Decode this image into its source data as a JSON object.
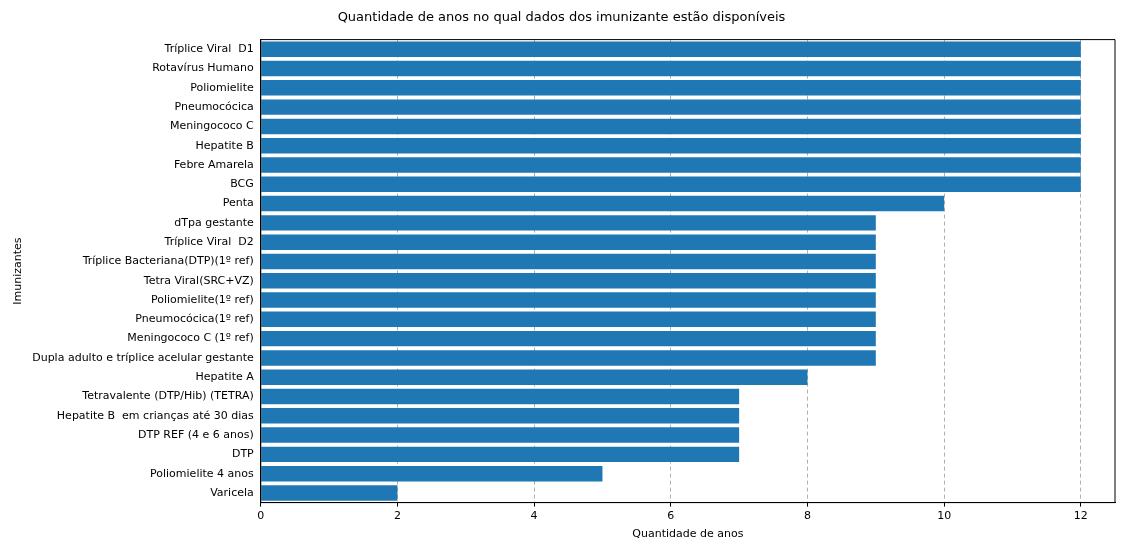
{
  "chart_data": {
    "type": "bar",
    "orientation": "horizontal",
    "title": "Quantidade de anos no qual dados dos imunizante estão disponíveis",
    "xlabel": "Quantidade de anos",
    "ylabel": "Imunizantes",
    "categories": [
      "Tríplice Viral  D1",
      "Rotavírus Humano",
      "Poliomielite",
      "Pneumocócica",
      "Meningococo C",
      "Hepatite B",
      "Febre Amarela",
      "BCG",
      "Penta",
      "dTpa gestante",
      "Tríplice Viral  D2",
      "Tríplice Bacteriana(DTP)(1º ref)",
      "Tetra Viral(SRC+VZ)",
      "Poliomielite(1º ref)",
      "Pneumocócica(1º ref)",
      "Meningococo C (1º ref)",
      "Dupla adulto e tríplice acelular gestante",
      "Hepatite A",
      "Tetravalente (DTP/Hib) (TETRA)",
      "Hepatite B  em crianças até 30 dias",
      "DTP REF (4 e 6 anos)",
      "DTP",
      "Poliomielite 4 anos",
      "Varicela"
    ],
    "values": [
      12,
      12,
      12,
      12,
      12,
      12,
      12,
      12,
      10,
      9,
      9,
      9,
      9,
      9,
      9,
      9,
      9,
      8,
      7,
      7,
      7,
      7,
      5,
      2
    ],
    "color": "#1f77b4",
    "xlim": [
      0,
      12.5
    ],
    "xticks": [
      0,
      2,
      4,
      6,
      8,
      10,
      12
    ],
    "grid": "x"
  }
}
